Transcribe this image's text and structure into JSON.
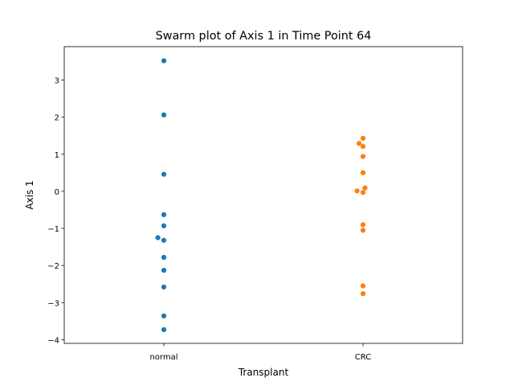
{
  "chart_data": {
    "type": "scatter",
    "title": "Swarm plot of Axis 1 in Time Point 64",
    "xlabel": "Transplant",
    "ylabel": "Axis 1",
    "categories": [
      "normal",
      "CRC"
    ],
    "ylim": [
      -4.1,
      3.9
    ],
    "yticks": [
      -4,
      -3,
      -2,
      -1,
      0,
      1,
      2,
      3
    ],
    "grid": false,
    "series": [
      {
        "color": "#1f77b4",
        "points": [
          {
            "x": 0,
            "y": 3.52
          },
          {
            "x": 0,
            "y": 2.06
          },
          {
            "x": 0,
            "y": 0.46
          },
          {
            "x": 0,
            "y": -0.63
          },
          {
            "x": 0,
            "y": -0.93
          },
          {
            "x": -0.03,
            "y": -1.25
          },
          {
            "x": 0,
            "y": -1.32
          },
          {
            "x": 0,
            "y": -1.78
          },
          {
            "x": 0,
            "y": -2.13
          },
          {
            "x": 0,
            "y": -2.58
          },
          {
            "x": 0,
            "y": -3.36
          },
          {
            "x": 0,
            "y": -3.73
          }
        ]
      },
      {
        "color": "#ff7f0e",
        "points": [
          {
            "x": 1,
            "y": 1.43
          },
          {
            "x": 0.98,
            "y": 1.29
          },
          {
            "x": 1,
            "y": 1.21
          },
          {
            "x": 1,
            "y": 0.94
          },
          {
            "x": 1,
            "y": 0.5
          },
          {
            "x": 1.01,
            "y": 0.09
          },
          {
            "x": 0.97,
            "y": 0.01
          },
          {
            "x": 1,
            "y": -0.03
          },
          {
            "x": 1,
            "y": -0.9
          },
          {
            "x": 1,
            "y": -1.05
          },
          {
            "x": 1,
            "y": -2.55
          },
          {
            "x": 1,
            "y": -2.76
          }
        ]
      }
    ]
  }
}
